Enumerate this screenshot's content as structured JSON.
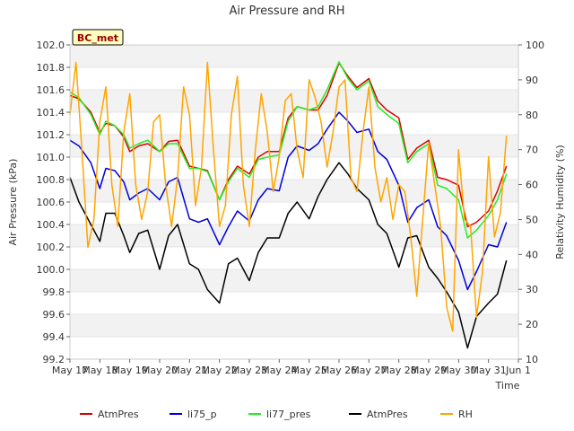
{
  "chart_data": {
    "type": "line",
    "title": "Air Pressure and RH",
    "site_label": "BC_met",
    "xlabel": "Time",
    "ylabel": "Air Pressure (kPa)",
    "y2label": "Relativity Humidity (%)",
    "xlim": [
      "2018-05-17",
      "2018-06-01"
    ],
    "ylim": [
      99.2,
      102.0
    ],
    "y2lim": [
      10,
      100
    ],
    "x_ticks": [
      "May 17",
      "May 18",
      "May 19",
      "May 20",
      "May 21",
      "May 22",
      "May 23",
      "May 24",
      "May 25",
      "May 26",
      "May 27",
      "May 28",
      "May 29",
      "May 30",
      "May 31",
      "Jun 1"
    ],
    "y_ticks": [
      "99.2",
      "99.4",
      "99.6",
      "99.8",
      "100.0",
      "100.2",
      "100.4",
      "100.6",
      "100.8",
      "101.0",
      "101.2",
      "101.4",
      "101.6",
      "101.8",
      "102.0"
    ],
    "y2_ticks": [
      "10",
      "20",
      "30",
      "40",
      "50",
      "60",
      "70",
      "80",
      "90",
      "100"
    ],
    "grid": "horizontal alternating bands",
    "legend_position": "bottom",
    "colors": {
      "AtmPres_red": "#dd0000",
      "li75_p": "#0000dd",
      "li77_pres": "#22ee22",
      "AtmPres_black": "#000000",
      "RH": "#ffa500"
    },
    "series": [
      {
        "name": "AtmPres",
        "axis": "left",
        "color": "#dd0000",
        "x": [
          0.0,
          0.3,
          0.7,
          1.0,
          1.2,
          1.5,
          1.8,
          2.0,
          2.3,
          2.6,
          3.0,
          3.3,
          3.6,
          4.0,
          4.3,
          4.6,
          5.0,
          5.3,
          5.6,
          6.0,
          6.3,
          6.6,
          7.0,
          7.3,
          7.6,
          8.0,
          8.3,
          8.6,
          9.0,
          9.3,
          9.6,
          10.0,
          10.3,
          10.6,
          11.0,
          11.3,
          11.6,
          12.0,
          12.3,
          12.6,
          13.0,
          13.3,
          13.6,
          14.0,
          14.3,
          14.6
        ],
        "values": [
          101.55,
          101.52,
          101.4,
          101.22,
          101.3,
          101.28,
          101.18,
          101.05,
          101.1,
          101.12,
          101.05,
          101.14,
          101.15,
          100.92,
          100.9,
          100.88,
          100.62,
          100.8,
          100.92,
          100.85,
          101.0,
          101.05,
          101.05,
          101.35,
          101.45,
          101.42,
          101.42,
          101.55,
          101.84,
          101.72,
          101.62,
          101.7,
          101.5,
          101.42,
          101.35,
          100.98,
          101.08,
          101.15,
          100.82,
          100.8,
          100.75,
          100.38,
          100.42,
          100.52,
          100.7,
          100.92
        ]
      },
      {
        "name": "li75_p",
        "axis": "left",
        "color": "#0000dd",
        "x": [
          0.0,
          0.3,
          0.7,
          1.0,
          1.2,
          1.5,
          1.8,
          2.0,
          2.3,
          2.6,
          3.0,
          3.3,
          3.6,
          4.0,
          4.3,
          4.6,
          5.0,
          5.3,
          5.6,
          6.0,
          6.3,
          6.6,
          7.0,
          7.3,
          7.6,
          8.0,
          8.3,
          8.6,
          9.0,
          9.3,
          9.6,
          10.0,
          10.3,
          10.6,
          11.0,
          11.3,
          11.6,
          12.0,
          12.3,
          12.6,
          13.0,
          13.3,
          13.6,
          14.0,
          14.3,
          14.6
        ],
        "values": [
          101.15,
          101.1,
          100.95,
          100.72,
          100.9,
          100.88,
          100.78,
          100.62,
          100.68,
          100.72,
          100.62,
          100.78,
          100.82,
          100.45,
          100.42,
          100.45,
          100.22,
          100.38,
          100.52,
          100.43,
          100.62,
          100.72,
          100.7,
          101.0,
          101.1,
          101.06,
          101.12,
          101.25,
          101.4,
          101.32,
          101.22,
          101.25,
          101.05,
          100.98,
          100.75,
          100.42,
          100.55,
          100.62,
          100.38,
          100.3,
          100.08,
          99.82,
          99.98,
          100.22,
          100.2,
          100.42
        ]
      },
      {
        "name": "li77_pres",
        "axis": "left",
        "color": "#22ee22",
        "x": [
          0.0,
          0.3,
          0.7,
          1.0,
          1.2,
          1.5,
          1.8,
          2.0,
          2.3,
          2.6,
          3.0,
          3.3,
          3.6,
          4.0,
          4.3,
          4.6,
          5.0,
          5.3,
          5.6,
          6.0,
          6.3,
          6.6,
          7.0,
          7.3,
          7.6,
          8.0,
          8.3,
          8.6,
          9.0,
          9.3,
          9.6,
          10.0,
          10.3,
          10.6,
          11.0,
          11.3,
          11.6,
          12.0,
          12.3,
          12.6,
          13.0,
          13.3,
          13.6,
          14.0,
          14.3,
          14.6
        ],
        "values": [
          101.58,
          101.53,
          101.38,
          101.2,
          101.32,
          101.28,
          101.2,
          101.08,
          101.12,
          101.15,
          101.05,
          101.12,
          101.12,
          100.9,
          100.9,
          100.87,
          100.62,
          100.78,
          100.9,
          100.82,
          100.98,
          101.0,
          101.02,
          101.32,
          101.45,
          101.42,
          101.45,
          101.6,
          101.85,
          101.7,
          101.6,
          101.68,
          101.45,
          101.38,
          101.3,
          100.95,
          101.05,
          101.12,
          100.75,
          100.72,
          100.62,
          100.28,
          100.35,
          100.48,
          100.62,
          100.85
        ]
      },
      {
        "name": "AtmPres",
        "axis": "left",
        "color": "#000000",
        "x": [
          0.0,
          0.3,
          0.7,
          1.0,
          1.2,
          1.5,
          1.8,
          2.0,
          2.3,
          2.6,
          3.0,
          3.3,
          3.6,
          4.0,
          4.3,
          4.6,
          5.0,
          5.3,
          5.6,
          6.0,
          6.3,
          6.6,
          7.0,
          7.3,
          7.6,
          8.0,
          8.3,
          8.6,
          9.0,
          9.3,
          9.6,
          10.0,
          10.3,
          10.6,
          11.0,
          11.3,
          11.6,
          12.0,
          12.3,
          12.6,
          13.0,
          13.3,
          13.6,
          14.0,
          14.3,
          14.6
        ],
        "values": [
          100.82,
          100.6,
          100.4,
          100.25,
          100.5,
          100.5,
          100.3,
          100.15,
          100.32,
          100.35,
          100.0,
          100.3,
          100.4,
          100.05,
          100.0,
          99.82,
          99.7,
          100.05,
          100.1,
          99.9,
          100.15,
          100.28,
          100.28,
          100.5,
          100.6,
          100.45,
          100.65,
          100.8,
          100.95,
          100.85,
          100.72,
          100.62,
          100.4,
          100.32,
          100.02,
          100.28,
          100.3,
          100.02,
          99.92,
          99.8,
          99.62,
          99.3,
          99.58,
          99.7,
          99.78,
          100.08
        ]
      },
      {
        "name": "RH",
        "axis": "right",
        "color": "#ffa500",
        "x": [
          0.0,
          0.2,
          0.4,
          0.6,
          0.8,
          1.0,
          1.2,
          1.4,
          1.6,
          1.8,
          2.0,
          2.2,
          2.4,
          2.6,
          2.8,
          3.0,
          3.2,
          3.4,
          3.6,
          3.8,
          4.0,
          4.2,
          4.4,
          4.6,
          4.8,
          5.0,
          5.2,
          5.4,
          5.6,
          5.8,
          6.0,
          6.2,
          6.4,
          6.6,
          6.8,
          7.0,
          7.2,
          7.4,
          7.6,
          7.8,
          8.0,
          8.2,
          8.4,
          8.6,
          8.8,
          9.0,
          9.2,
          9.4,
          9.6,
          9.8,
          10.0,
          10.2,
          10.4,
          10.6,
          10.8,
          11.0,
          11.2,
          11.4,
          11.6,
          11.8,
          12.0,
          12.2,
          12.4,
          12.6,
          12.8,
          13.0,
          13.2,
          13.4,
          13.6,
          13.8,
          14.0,
          14.2,
          14.4,
          14.6
        ],
        "values": [
          80,
          95,
          70,
          42,
          50,
          78,
          88,
          60,
          48,
          75,
          86,
          60,
          50,
          58,
          78,
          80,
          60,
          48,
          62,
          88,
          80,
          54,
          65,
          95,
          70,
          48,
          54,
          80,
          91,
          60,
          48,
          70,
          86,
          75,
          58,
          68,
          84,
          86,
          70,
          62,
          90,
          85,
          78,
          65,
          75,
          88,
          90,
          62,
          58,
          75,
          88,
          65,
          55,
          62,
          50,
          60,
          58,
          45,
          28,
          50,
          72,
          60,
          48,
          25,
          18,
          70,
          50,
          48,
          22,
          35,
          68,
          45,
          52,
          74
        ]
      }
    ]
  }
}
